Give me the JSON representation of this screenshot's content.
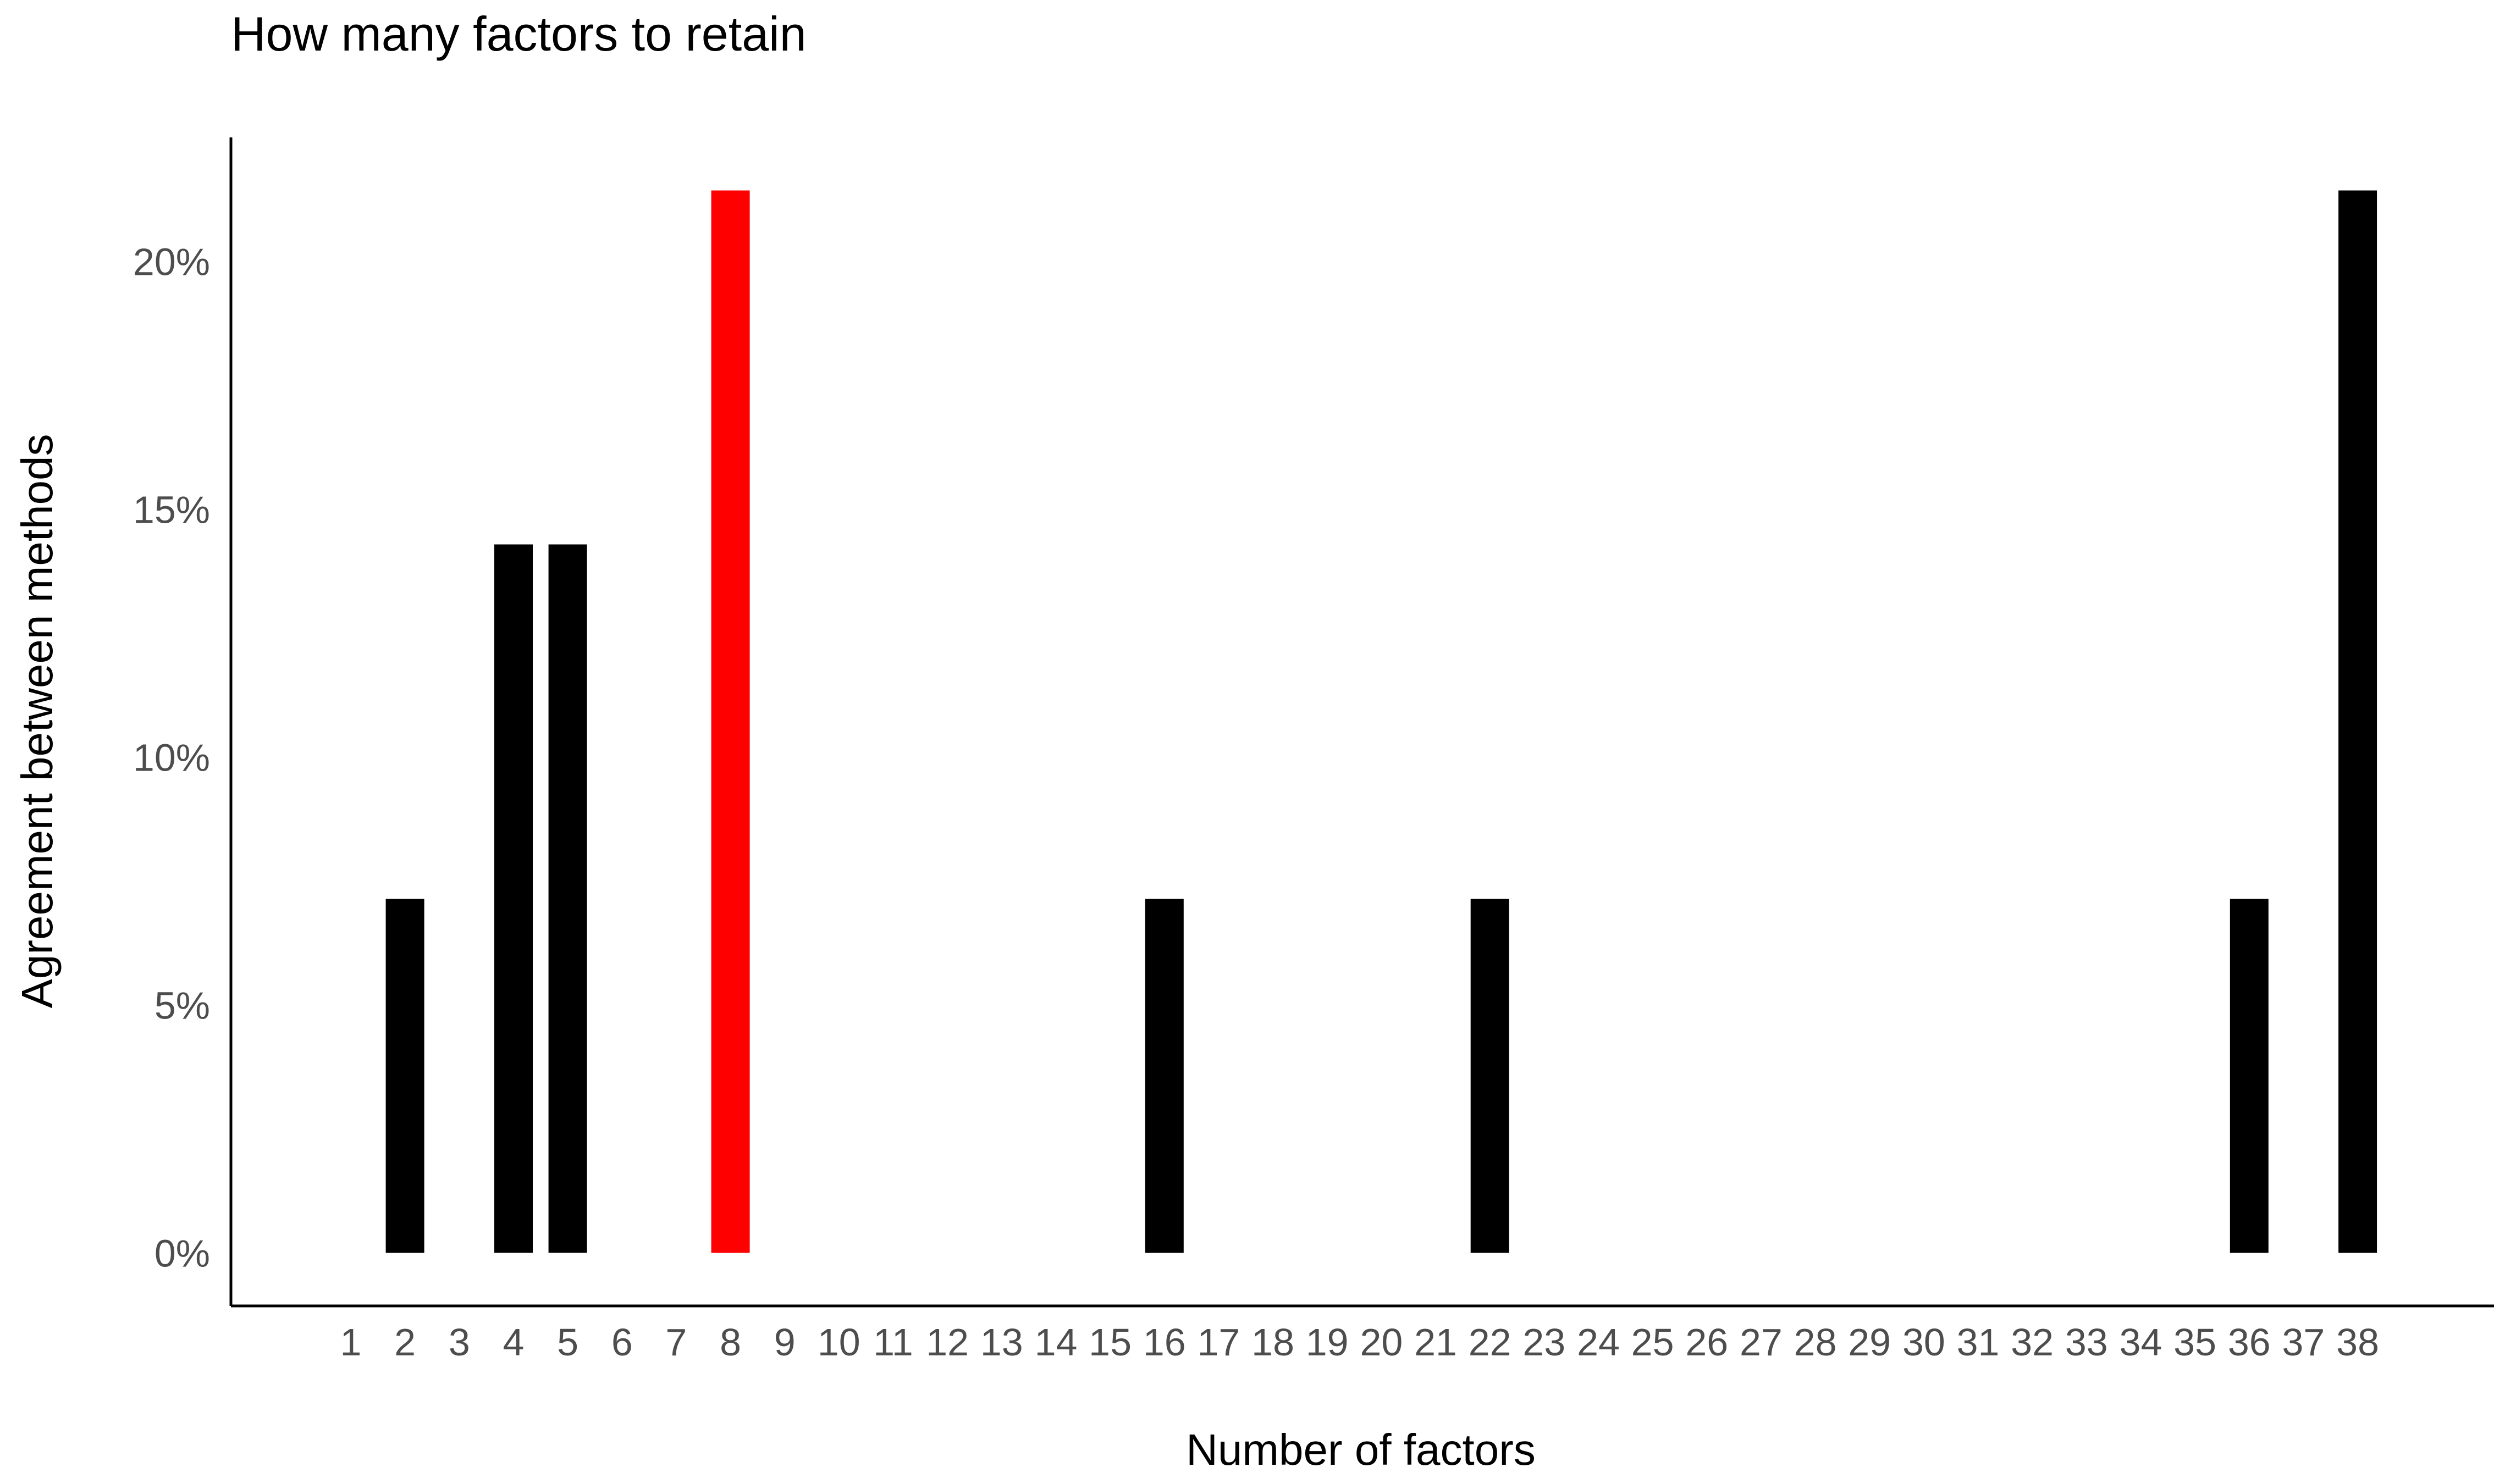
{
  "chart_data": {
    "type": "bar",
    "title": "How many factors to retain",
    "xlabel": "Number of factors",
    "ylabel": "Agreement between methods",
    "categories": [
      "1",
      "2",
      "3",
      "4",
      "5",
      "6",
      "7",
      "8",
      "9",
      "10",
      "11",
      "12",
      "13",
      "14",
      "15",
      "16",
      "17",
      "18",
      "19",
      "20",
      "21",
      "22",
      "23",
      "24",
      "25",
      "26",
      "27",
      "28",
      "29",
      "30",
      "31",
      "32",
      "33",
      "34",
      "35",
      "36",
      "37",
      "38"
    ],
    "values": [
      0,
      7.14,
      0,
      14.29,
      14.29,
      0,
      0,
      21.43,
      0,
      0,
      0,
      0,
      0,
      0,
      0,
      7.14,
      0,
      0,
      0,
      0,
      0,
      7.14,
      0,
      0,
      0,
      0,
      0,
      0,
      0,
      0,
      0,
      0,
      0,
      0,
      0,
      7.14,
      0,
      21.43
    ],
    "highlight_category": "8",
    "yticks": [
      0,
      5,
      10,
      15,
      20
    ],
    "ytick_labels": [
      "0%",
      "5%",
      "10%",
      "15%",
      "20%"
    ],
    "ylim": [
      -1.07,
      22.5
    ],
    "grid": false,
    "legend": "none",
    "colors": {
      "bar": "#000000",
      "highlight": "#ff0000",
      "axis": "#000000",
      "tick_text": "#4d4d4d",
      "label_text": "#000000",
      "background": "#ffffff"
    }
  }
}
